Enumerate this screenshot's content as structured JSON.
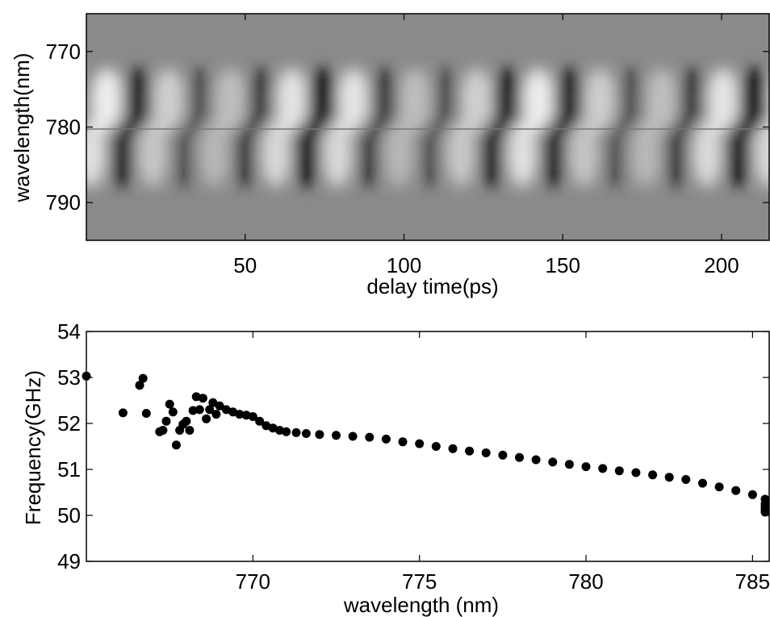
{
  "chart_data": [
    {
      "type": "heatmap",
      "title": "",
      "xlabel": "delay time(ps)",
      "ylabel": "wavelength(nm)",
      "xlim": [
        0,
        215
      ],
      "ylim": [
        795,
        765
      ],
      "xticks": [
        50,
        100,
        150,
        200
      ],
      "yticks": [
        770,
        780,
        790
      ],
      "colormap": "gray",
      "grid": false,
      "oscillation_period_ps": 19.4,
      "center_wavelength_nm": 780
    },
    {
      "type": "scatter",
      "title": "",
      "xlabel": "wavelength (nm)",
      "ylabel": "Frequency(GHz)",
      "xlim": [
        765,
        785.5
      ],
      "ylim": [
        49,
        54
      ],
      "xticks": [
        770,
        775,
        780,
        785
      ],
      "yticks": [
        49,
        50,
        51,
        52,
        53,
        54
      ],
      "grid": false,
      "marker_color": "#000000",
      "series": [
        {
          "x": [
            765.0,
            766.1,
            766.6,
            766.7,
            766.8,
            767.2,
            767.3,
            767.4,
            767.5,
            767.6,
            767.7,
            767.8,
            767.9,
            768.0,
            768.1,
            768.2,
            768.3,
            768.4,
            768.5,
            768.6,
            768.7,
            768.8,
            768.9,
            769.0,
            769.2,
            769.4,
            769.6,
            769.8,
            770.0,
            770.2,
            770.4,
            770.6,
            770.8,
            771.0,
            771.3,
            771.6,
            772.0,
            772.5,
            773.0,
            773.5,
            774.0,
            774.5,
            775.0,
            775.5,
            776.0,
            776.5,
            777.0,
            777.5,
            778.0,
            778.5,
            779.0,
            779.5,
            780.0,
            780.5,
            781.0,
            781.5,
            782.0,
            782.5,
            783.0,
            783.5,
            784.0,
            784.5,
            785.0,
            785.5,
            786.0,
            786.4,
            786.8,
            787.0
          ],
          "y": [
            53.03,
            52.23,
            52.83,
            52.98,
            52.22,
            51.82,
            51.85,
            52.05,
            52.42,
            52.25,
            51.53,
            51.85,
            51.98,
            52.05,
            51.85,
            52.28,
            52.58,
            52.3,
            52.55,
            52.1,
            52.3,
            52.45,
            52.2,
            52.38,
            52.3,
            52.25,
            52.2,
            52.18,
            52.15,
            52.05,
            51.95,
            51.9,
            51.85,
            51.82,
            51.8,
            51.78,
            51.76,
            51.74,
            51.72,
            51.7,
            51.66,
            51.6,
            51.56,
            51.5,
            51.45,
            51.4,
            51.36,
            51.31,
            51.26,
            51.21,
            51.16,
            51.11,
            51.06,
            51.02,
            50.97,
            50.93,
            50.88,
            50.83,
            50.78,
            50.7,
            50.62,
            50.54,
            50.45,
            50.35,
            50.25,
            50.18,
            50.12,
            50.07
          ]
        }
      ]
    }
  ]
}
